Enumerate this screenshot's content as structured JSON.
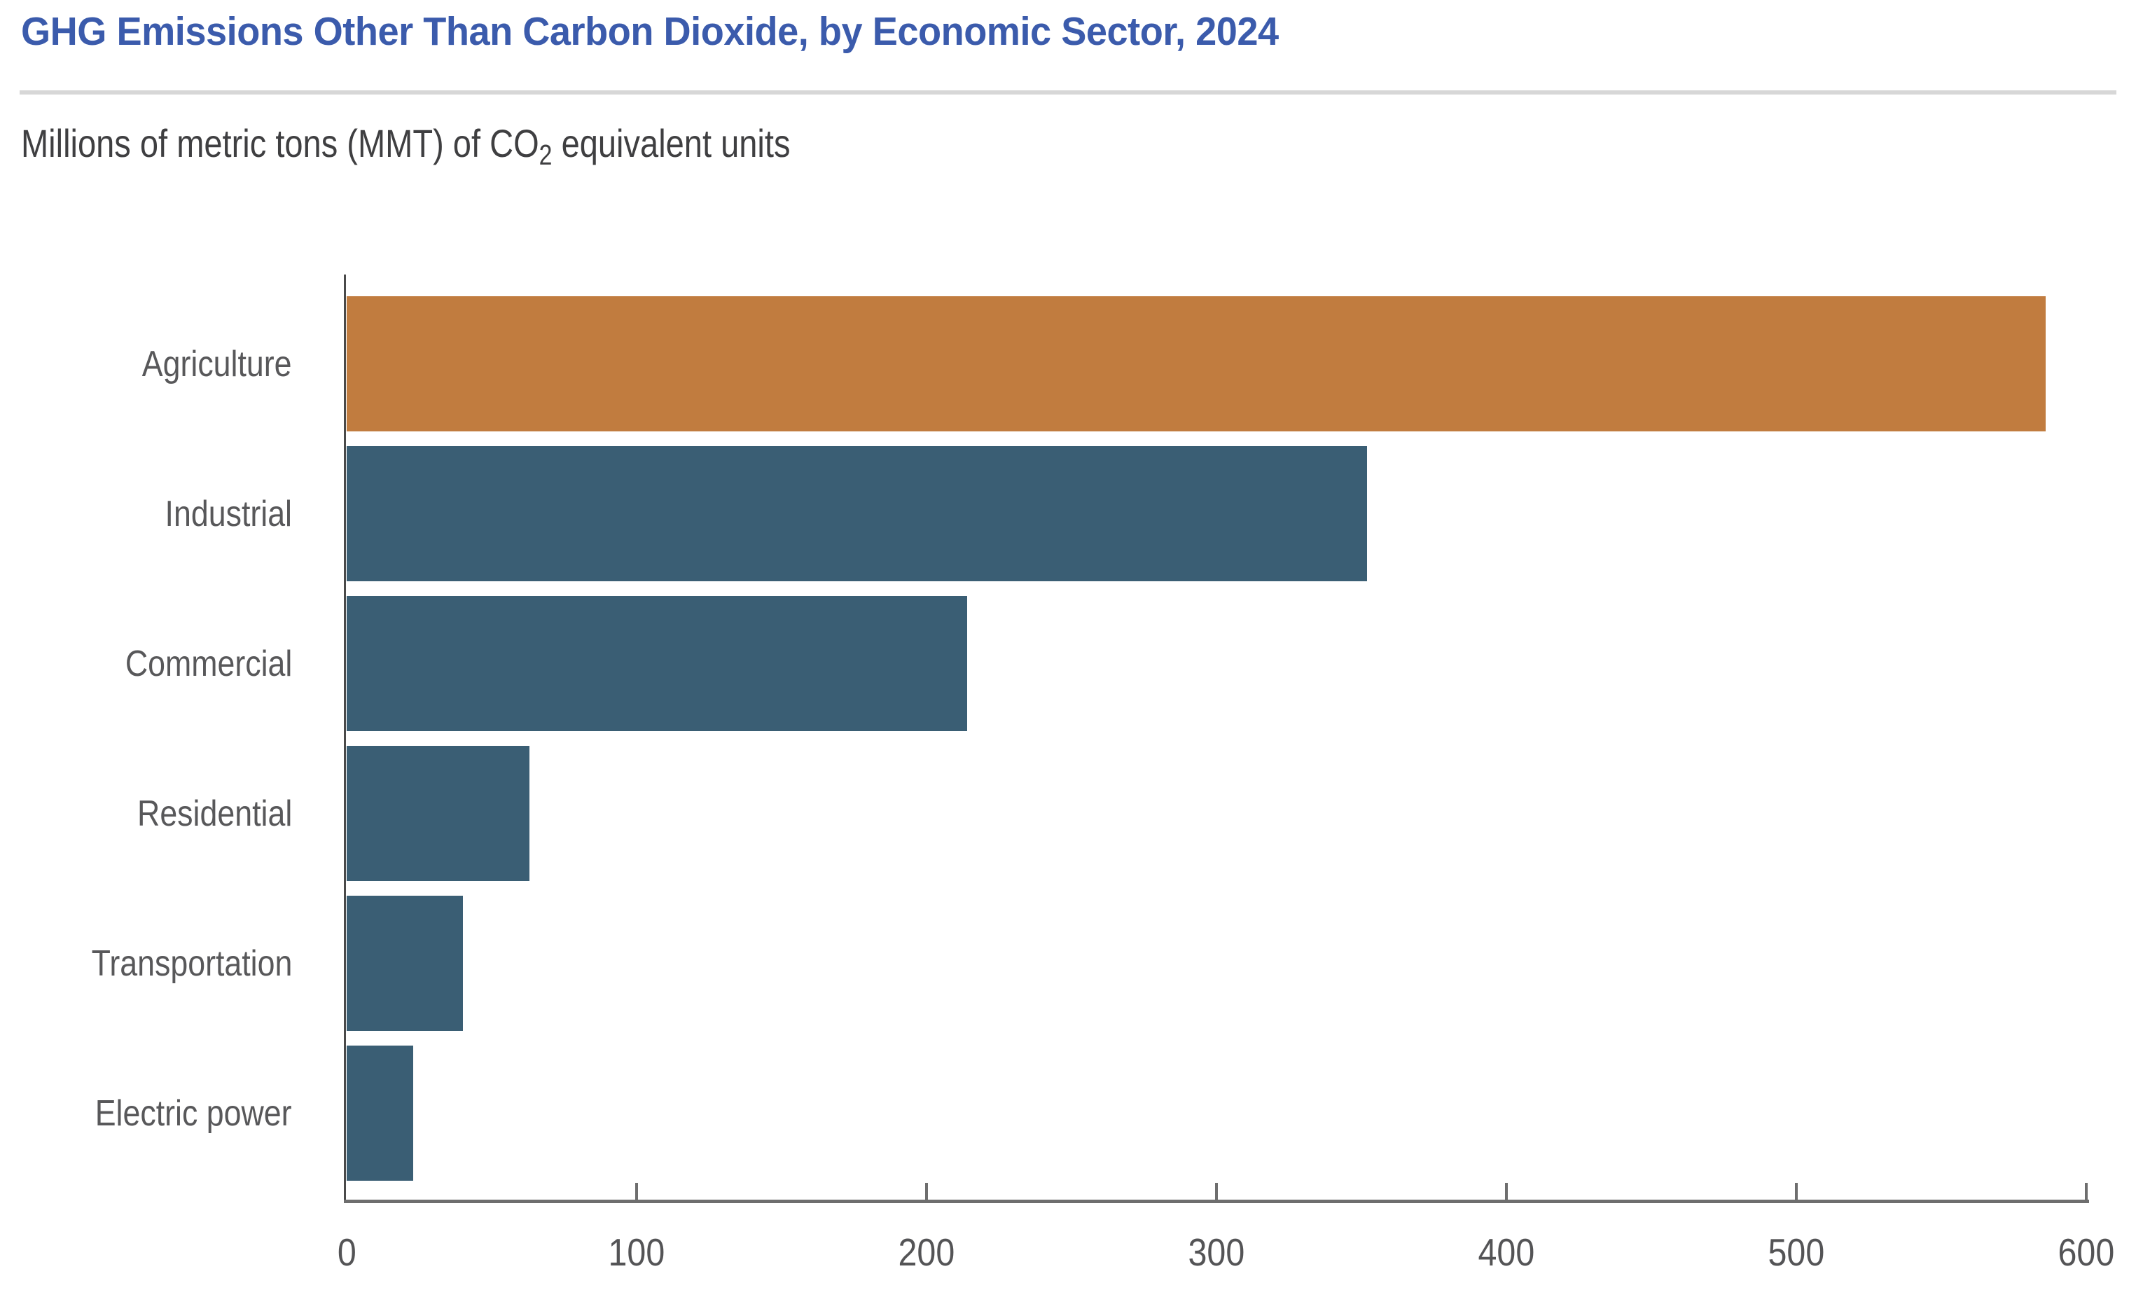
{
  "page": {
    "title": "GHG Emissions Other Than Carbon Dioxide, by Economic Sector, 2024",
    "subtitle_prefix": "Millions of metric tons (MMT) of CO",
    "subtitle_sub": "2",
    "subtitle_suffix": " equivalent units"
  },
  "colors": {
    "title_blue": "#3B5BAC",
    "bar_default": "#3A5E74",
    "bar_highlight": "#C17C3F",
    "axis_gray": "#6E6E6E",
    "label_gray": "#58585A"
  },
  "chart_data": {
    "type": "bar",
    "orientation": "horizontal",
    "title": "GHG Emissions Other Than Carbon Dioxide, by Economic Sector, 2024",
    "subtitle": "Millions of metric tons (MMT) of CO2 equivalent units",
    "categories": [
      "Agriculture",
      "Industrial",
      "Commercial",
      "Residential",
      "Transportation",
      "Electric power"
    ],
    "values": [
      586,
      352,
      214,
      63,
      40,
      23
    ],
    "highlight_category": "Agriculture",
    "bar_colors": [
      "#C17C3F",
      "#3A5E74",
      "#3A5E74",
      "#3A5E74",
      "#3A5E74",
      "#3A5E74"
    ],
    "xlabel": "",
    "ylabel": "",
    "xlim": [
      0,
      600
    ],
    "xticks": [
      0,
      100,
      200,
      300,
      400,
      500,
      600
    ],
    "grid": false,
    "legend": false
  }
}
